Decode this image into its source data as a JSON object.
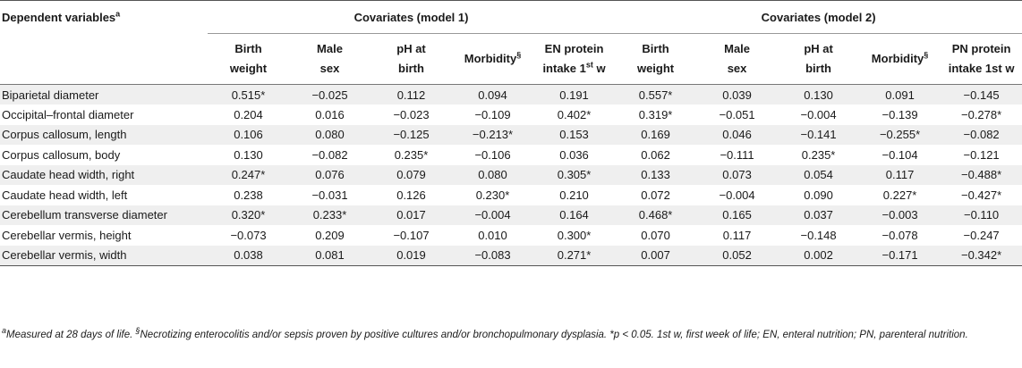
{
  "table": {
    "label_header": "Dependent variables",
    "label_header_sup": "a",
    "groups": [
      {
        "label": "Covariates (model 1)"
      },
      {
        "label": "Covariates (model 2)"
      }
    ],
    "columns": [
      {
        "line1": "Birth",
        "line2": "weight",
        "sup": ""
      },
      {
        "line1": "Male",
        "line2": "sex",
        "sup": ""
      },
      {
        "line1": "pH at",
        "line2": "birth",
        "sup": ""
      },
      {
        "line1": "Morbidity",
        "line2": "",
        "sup": "§"
      },
      {
        "line1": "EN protein",
        "line2": "intake 1",
        "sup": "st",
        "line2_tail": " w"
      },
      {
        "line1": "Birth",
        "line2": "weight",
        "sup": ""
      },
      {
        "line1": "Male",
        "line2": "sex",
        "sup": ""
      },
      {
        "line1": "pH at",
        "line2": "birth",
        "sup": ""
      },
      {
        "line1": "Morbidity",
        "line2": "",
        "sup": "§"
      },
      {
        "line1": "PN protein",
        "line2": "intake 1st w",
        "sup": ""
      }
    ],
    "rows": [
      {
        "label": "Biparietal diameter",
        "values": [
          "0.515*",
          "−0.025",
          "0.112",
          "0.094",
          "0.191",
          "0.557*",
          "0.039",
          "0.130",
          "0.091",
          "−0.145"
        ]
      },
      {
        "label": "Occipital–frontal diameter",
        "values": [
          "0.204",
          "0.016",
          "−0.023",
          "−0.109",
          "0.402*",
          "0.319*",
          "−0.051",
          "−0.004",
          "−0.139",
          "−0.278*"
        ]
      },
      {
        "label": "Corpus callosum, length",
        "values": [
          "0.106",
          "0.080",
          "−0.125",
          "−0.213*",
          "0.153",
          "0.169",
          "0.046",
          "−0.141",
          "−0.255*",
          "−0.082"
        ]
      },
      {
        "label": "Corpus callosum, body",
        "values": [
          "0.130",
          "−0.082",
          "0.235*",
          "−0.106",
          "0.036",
          "0.062",
          "−0.111",
          "0.235*",
          "−0.104",
          "−0.121"
        ]
      },
      {
        "label": "Caudate head width, right",
        "values": [
          "0.247*",
          "0.076",
          "0.079",
          "0.080",
          "0.305*",
          "0.133",
          "0.073",
          "0.054",
          "0.117",
          "−0.488*"
        ]
      },
      {
        "label": "Caudate head width, left",
        "values": [
          "0.238",
          "−0.031",
          "0.126",
          "0.230*",
          "0.210",
          "0.072",
          "−0.004",
          "0.090",
          "0.227*",
          "−0.427*"
        ]
      },
      {
        "label": "Cerebellum transverse diameter",
        "values": [
          "0.320*",
          "0.233*",
          "0.017",
          "−0.004",
          "0.164",
          "0.468*",
          "0.165",
          "0.037",
          "−0.003",
          "−0.110"
        ]
      },
      {
        "label": "Cerebellar vermis, height",
        "values": [
          "−0.073",
          "0.209",
          "−0.107",
          "0.010",
          "0.300*",
          "0.070",
          "0.117",
          "−0.148",
          "−0.078",
          "−0.247"
        ]
      },
      {
        "label": "Cerebellar vermis, width",
        "values": [
          "0.038",
          "0.081",
          "0.019",
          "−0.083",
          "0.271*",
          "0.007",
          "0.052",
          "0.002",
          "−0.171",
          "−0.342*"
        ]
      }
    ]
  },
  "footnote": {
    "a_sup": "a",
    "a_text": "Measured at 28 days of life. ",
    "s_sup": "§",
    "s_text": "Necrotizing enterocolitis and/or sepsis proven by positive cultures and/or bronchopulmonary dysplasia. *p < 0.05. 1st w, first week of life; EN, enteral nutrition; PN, parenteral nutrition."
  },
  "colors": {
    "shade": "#efefef",
    "rule": "#555555",
    "text": "#1a1a1a"
  }
}
